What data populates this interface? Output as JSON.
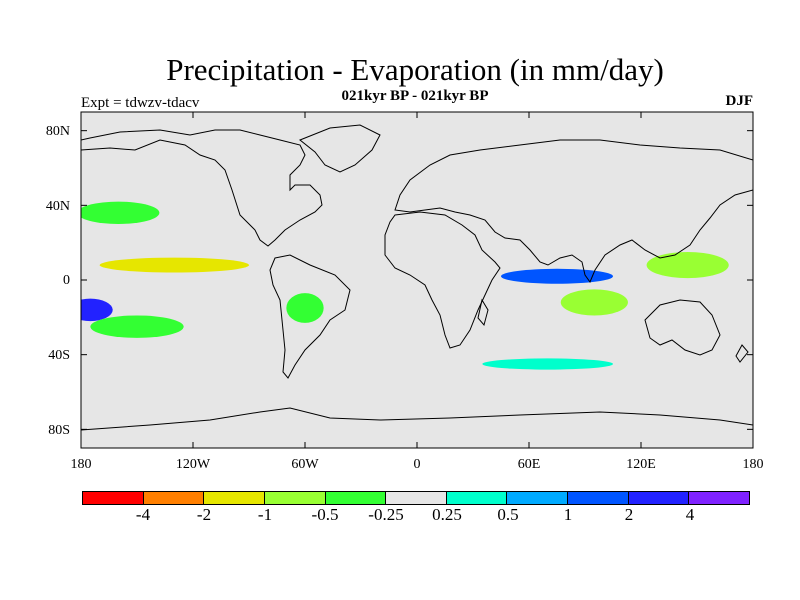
{
  "header": {
    "title": "Precipitation - Evaporation (in mm/day)",
    "subtitle": "021kyr BP - 021kyr BP",
    "expt": "Expt = tdwzv-tdacv",
    "season": "DJF"
  },
  "map": {
    "background_color": "#e6e6e6",
    "projection": "cylindrical-equidistant",
    "lon_range": [
      -180,
      180
    ],
    "lat_range": [
      -90,
      90
    ],
    "lat_ticks": [
      {
        "value": 80,
        "label": "80N"
      },
      {
        "value": 40,
        "label": "40N"
      },
      {
        "value": 0,
        "label": "0"
      },
      {
        "value": -40,
        "label": "40S"
      },
      {
        "value": -80,
        "label": "80S"
      }
    ],
    "lon_ticks": [
      {
        "value": -180,
        "label": "180"
      },
      {
        "value": -120,
        "label": "120W"
      },
      {
        "value": -60,
        "label": "60W"
      },
      {
        "value": 0,
        "label": "0"
      },
      {
        "value": 60,
        "label": "60E"
      },
      {
        "value": 120,
        "label": "120E"
      },
      {
        "value": 180,
        "label": "180"
      }
    ]
  },
  "chart_data": {
    "type": "heatmap",
    "variable": "Precipitation - Evaporation",
    "units": "mm/day",
    "colorbar": {
      "colors": [
        "#ff0000",
        "#ff7f00",
        "#e6e600",
        "#99ff33",
        "#33ff33",
        "#e6e6e6",
        "#00ffcc",
        "#00aaff",
        "#0055ff",
        "#2222ff",
        "#7f22ff"
      ],
      "levels": [
        -4,
        -2,
        -1,
        -0.5,
        -0.25,
        0.25,
        0.5,
        1,
        2,
        4
      ],
      "labels": [
        "-4",
        "-2",
        "-1",
        "-0.5",
        "-0.25",
        "0.25",
        "0.5",
        "1",
        "2",
        "4"
      ]
    },
    "anomaly_regions": [
      {
        "region": "N Pacific 40N",
        "lon": -160,
        "lat": 36,
        "value": -0.4
      },
      {
        "region": "Tropical E Pacific ITCZ",
        "lon": -130,
        "lat": 8,
        "value": -1.5
      },
      {
        "region": "W Tropical Pacific",
        "lon": 145,
        "lat": 8,
        "value": -1.0
      },
      {
        "region": "Equatorial Indian Ocean",
        "lon": 75,
        "lat": 2,
        "value": 1.0
      },
      {
        "region": "S Indian Ocean",
        "lon": 95,
        "lat": -12,
        "value": -1.0
      },
      {
        "region": "SW Pacific",
        "lon": -175,
        "lat": -16,
        "value": 2.0
      },
      {
        "region": "S Pacific",
        "lon": -150,
        "lat": -25,
        "value": -0.5
      },
      {
        "region": "S America",
        "lon": -60,
        "lat": -15,
        "value": -0.4
      },
      {
        "region": "Southern Ocean",
        "lon": 70,
        "lat": -45,
        "value": 0.4
      }
    ]
  }
}
